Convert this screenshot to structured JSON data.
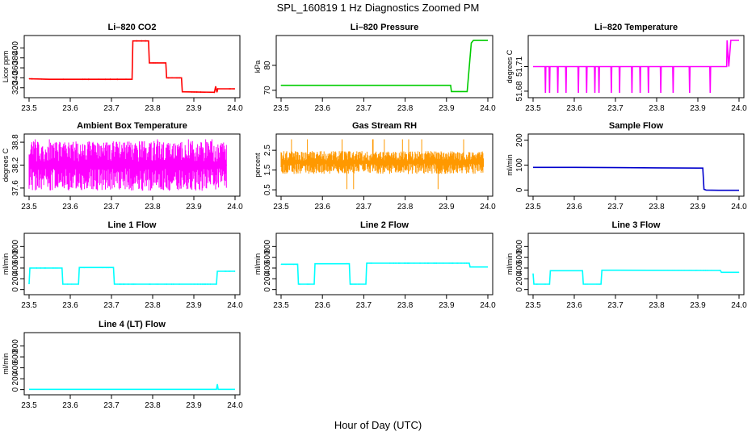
{
  "figure": {
    "title": "SPL_160819  1 Hz Diagnostics Zoomed PM",
    "xlabel": "Hour of Day (UTC)"
  },
  "chart_data": [
    {
      "type": "line",
      "title": "Li–820 CO2",
      "ylabel": "Licor ppm",
      "color": "#ff0000",
      "xlim": [
        23.5,
        24.0
      ],
      "ylim": [
        305,
        420
      ],
      "xticks": [
        23.5,
        23.6,
        23.7,
        23.8,
        23.9,
        24.0
      ],
      "xtick_labels": [
        "23.5",
        "23.6",
        "23.7",
        "23.8",
        "23.9",
        "24.0"
      ],
      "yticks": [
        320,
        340,
        360,
        380,
        400
      ],
      "ytick_labels": [
        "320",
        "340",
        "360",
        "380",
        "400"
      ],
      "x": [
        23.5,
        23.55,
        23.6,
        23.65,
        23.7,
        23.75,
        23.752,
        23.79,
        23.792,
        23.832,
        23.834,
        23.87,
        23.872,
        23.95,
        23.953,
        23.956,
        23.958,
        24.0
      ],
      "y": [
        338,
        337,
        337,
        337,
        337,
        337,
        414,
        414,
        370,
        370,
        340,
        340,
        312,
        311,
        323,
        311,
        318,
        318
      ],
      "noise": 1.5
    },
    {
      "type": "line",
      "title": "Li–820 Pressure",
      "ylabel": "kPa",
      "color": "#00cc00",
      "xlim": [
        23.5,
        24.0
      ],
      "ylim": [
        68,
        91
      ],
      "xticks": [
        23.5,
        23.6,
        23.7,
        23.8,
        23.9,
        24.0
      ],
      "xtick_labels": [
        "23.5",
        "23.6",
        "23.7",
        "23.8",
        "23.9",
        "24.0"
      ],
      "yticks": [
        70,
        80
      ],
      "ytick_labels": [
        "70",
        "80"
      ],
      "x": [
        23.5,
        23.6,
        23.7,
        23.8,
        23.91,
        23.912,
        23.95,
        23.96,
        23.965,
        24.0
      ],
      "y": [
        72,
        72,
        72,
        72,
        72,
        69.5,
        69.5,
        89,
        90,
        90
      ],
      "noise": 0.15
    },
    {
      "type": "line",
      "title": "Li–820 Temperature",
      "ylabel": "degrees C",
      "color": "#ff00ff",
      "xlim": [
        23.5,
        24.0
      ],
      "ylim": [
        51.675,
        51.745
      ],
      "xticks": [
        23.5,
        23.6,
        23.7,
        23.8,
        23.9,
        24.0
      ],
      "xtick_labels": [
        "23.5",
        "23.6",
        "23.7",
        "23.8",
        "23.9",
        "24.0"
      ],
      "yticks": [
        51.68,
        51.71
      ],
      "ytick_labels": [
        "51.68",
        "51.71"
      ],
      "x": [
        23.5,
        23.529,
        23.53,
        23.531,
        23.539,
        23.54,
        23.541,
        23.559,
        23.56,
        23.561,
        23.579,
        23.58,
        23.581,
        23.609,
        23.61,
        23.611,
        23.629,
        23.63,
        23.631,
        23.649,
        23.65,
        23.651,
        23.659,
        23.66,
        23.661,
        23.689,
        23.69,
        23.691,
        23.709,
        23.71,
        23.711,
        23.739,
        23.74,
        23.741,
        23.759,
        23.76,
        23.761,
        23.779,
        23.78,
        23.781,
        23.809,
        23.81,
        23.811,
        23.839,
        23.84,
        23.841,
        23.879,
        23.88,
        23.881,
        23.929,
        23.93,
        23.931,
        23.97,
        23.971,
        23.975,
        23.98,
        23.985,
        24.0
      ],
      "y": [
        51.71,
        51.71,
        51.678,
        51.71,
        51.71,
        51.678,
        51.71,
        51.71,
        51.678,
        51.71,
        51.71,
        51.678,
        51.71,
        51.71,
        51.678,
        51.71,
        51.71,
        51.678,
        51.71,
        51.71,
        51.678,
        51.71,
        51.71,
        51.678,
        51.71,
        51.71,
        51.678,
        51.71,
        51.71,
        51.678,
        51.71,
        51.71,
        51.678,
        51.71,
        51.71,
        51.678,
        51.71,
        51.71,
        51.678,
        51.71,
        51.71,
        51.678,
        51.71,
        51.71,
        51.678,
        51.71,
        51.71,
        51.678,
        51.71,
        51.71,
        51.678,
        51.71,
        51.71,
        51.742,
        51.71,
        51.742,
        51.742,
        51.742
      ],
      "noise": 0
    },
    {
      "type": "line",
      "title": "Ambient Box Temperature",
      "ylabel": "degrees C",
      "color": "#ff00ff",
      "xlim": [
        23.5,
        24.0
      ],
      "ylim": [
        37.45,
        38.95
      ],
      "xticks": [
        23.5,
        23.6,
        23.7,
        23.8,
        23.9,
        24.0
      ],
      "xtick_labels": [
        "23.5",
        "23.6",
        "23.7",
        "23.8",
        "23.9",
        "24.0"
      ],
      "yticks": [
        37.6,
        38.2,
        38.8
      ],
      "ytick_labels": [
        "37.6",
        "38.2",
        "38.8"
      ],
      "x": [
        23.5,
        23.98
      ],
      "y": [
        38.2,
        38.2
      ],
      "band": [
        37.75,
        38.65
      ],
      "noise": 0
    },
    {
      "type": "line",
      "title": "Gas Stream RH",
      "ylabel": "percent",
      "color": "#ff9900",
      "xlim": [
        23.5,
        24.0
      ],
      "ylim": [
        0.3,
        3.2
      ],
      "xticks": [
        23.5,
        23.6,
        23.7,
        23.8,
        23.9,
        24.0
      ],
      "xtick_labels": [
        "23.5",
        "23.6",
        "23.7",
        "23.8",
        "23.9",
        "24.0"
      ],
      "yticks": [
        0.5,
        1.5,
        2.5
      ],
      "ytick_labels": [
        "0.5",
        "1.5",
        "2.5"
      ],
      "x": [
        23.5,
        23.99
      ],
      "y": [
        1.9,
        1.9
      ],
      "band": [
        1.5,
        2.3
      ],
      "noise": 0
    },
    {
      "type": "line",
      "title": "Sample Flow",
      "ylabel": "ml/min",
      "color": "#0000cc",
      "xlim": [
        23.5,
        24.0
      ],
      "ylim": [
        -15,
        215
      ],
      "xticks": [
        23.5,
        23.6,
        23.7,
        23.8,
        23.9,
        24.0
      ],
      "xtick_labels": [
        "23.5",
        "23.6",
        "23.7",
        "23.8",
        "23.9",
        "24.0"
      ],
      "yticks": [
        0,
        100,
        200
      ],
      "ytick_labels": [
        "0",
        "100",
        "200"
      ],
      "x": [
        23.5,
        23.6,
        23.7,
        23.8,
        23.9,
        23.912,
        23.915,
        23.92,
        23.95,
        24.0
      ],
      "y": [
        91,
        91,
        90,
        89,
        88,
        88,
        3,
        0,
        -1,
        -1
      ],
      "noise": 1
    },
    {
      "type": "line",
      "title": "Line 1 Flow",
      "ylabel": "ml/min",
      "color": "#00ffff",
      "xlim": [
        23.5,
        24.0
      ],
      "ylim": [
        -50,
        1000
      ],
      "xticks": [
        23.5,
        23.6,
        23.7,
        23.8,
        23.9,
        24.0
      ],
      "xtick_labels": [
        "23.5",
        "23.6",
        "23.7",
        "23.8",
        "23.9",
        "24.0"
      ],
      "yticks": [
        0,
        200,
        400,
        600,
        800
      ],
      "ytick_labels": [
        "0",
        "200",
        "400",
        "600",
        "800"
      ],
      "x": [
        23.5,
        23.502,
        23.58,
        23.582,
        23.62,
        23.622,
        23.705,
        23.707,
        23.955,
        23.957,
        24.0
      ],
      "y": [
        100,
        400,
        400,
        100,
        100,
        410,
        410,
        100,
        100,
        340,
        340
      ],
      "noise": 12
    },
    {
      "type": "line",
      "title": "Line 2 Flow",
      "ylabel": "ml/min",
      "color": "#00ffff",
      "xlim": [
        23.5,
        24.0
      ],
      "ylim": [
        -50,
        1000
      ],
      "xticks": [
        23.5,
        23.6,
        23.7,
        23.8,
        23.9,
        24.0
      ],
      "xtick_labels": [
        "23.5",
        "23.6",
        "23.7",
        "23.8",
        "23.9",
        "24.0"
      ],
      "yticks": [
        0,
        200,
        400,
        600,
        800
      ],
      "ytick_labels": [
        "0",
        "200",
        "400",
        "600",
        "800"
      ],
      "x": [
        23.5,
        23.54,
        23.542,
        23.58,
        23.582,
        23.665,
        23.667,
        23.705,
        23.707,
        23.955,
        23.957,
        24.0
      ],
      "y": [
        470,
        470,
        100,
        100,
        480,
        480,
        100,
        100,
        490,
        490,
        420,
        420
      ],
      "noise": 12
    },
    {
      "type": "line",
      "title": "Line 3 Flow",
      "ylabel": "ml/min",
      "color": "#00ffff",
      "xlim": [
        23.5,
        24.0
      ],
      "ylim": [
        -50,
        1000
      ],
      "xticks": [
        23.5,
        23.6,
        23.7,
        23.8,
        23.9,
        24.0
      ],
      "xtick_labels": [
        "23.5",
        "23.6",
        "23.7",
        "23.8",
        "23.9",
        "24.0"
      ],
      "yticks": [
        0,
        200,
        400,
        600,
        800
      ],
      "ytick_labels": [
        "0",
        "200",
        "400",
        "600",
        "800"
      ],
      "x": [
        23.5,
        23.502,
        23.54,
        23.542,
        23.62,
        23.622,
        23.665,
        23.667,
        23.955,
        23.957,
        24.0
      ],
      "y": [
        300,
        100,
        100,
        350,
        350,
        100,
        100,
        360,
        355,
        320,
        320
      ],
      "noise": 10
    },
    {
      "type": "line",
      "title": "Line 4 (LT) Flow",
      "ylabel": "ml/min",
      "color": "#00ffff",
      "xlim": [
        23.5,
        24.0
      ],
      "ylim": [
        -50,
        1000
      ],
      "xticks": [
        23.5,
        23.6,
        23.7,
        23.8,
        23.9,
        24.0
      ],
      "xtick_labels": [
        "23.5",
        "23.6",
        "23.7",
        "23.8",
        "23.9",
        "24.0"
      ],
      "yticks": [
        0,
        200,
        400,
        600,
        800
      ],
      "ytick_labels": [
        "0",
        "200",
        "400",
        "600",
        "800"
      ],
      "x": [
        23.5,
        23.955,
        23.957,
        23.959,
        24.0
      ],
      "y": [
        5,
        5,
        100,
        5,
        5
      ],
      "noise": 2
    }
  ]
}
